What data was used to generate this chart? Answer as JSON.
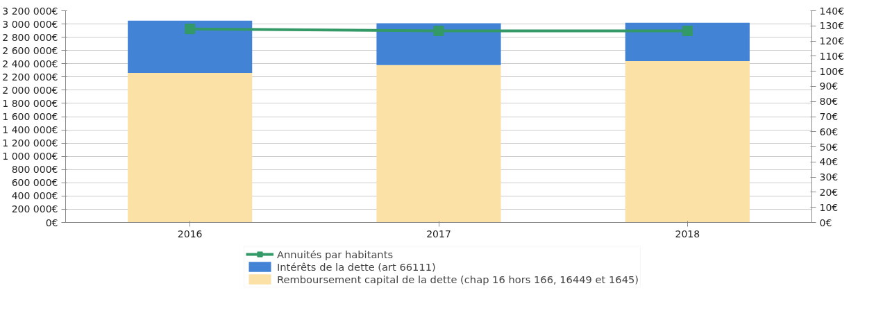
{
  "chart_data": {
    "type": "bar",
    "stacked": true,
    "categories": [
      "2016",
      "2017",
      "2018"
    ],
    "series": [
      {
        "name": "Remboursement capital de la dette (chap 16 hors 166, 16449 et 1645)",
        "color": "#fce1a6",
        "values": [
          2260000,
          2380000,
          2440000
        ]
      },
      {
        "name": "Intérêts de la dette (art 66111)",
        "color": "#4383d6",
        "values": [
          790000,
          630000,
          580000
        ]
      },
      {
        "name": "Annuités par habitants",
        "type": "line",
        "axis": "y2",
        "color": "#339966",
        "marker": "square",
        "values": [
          128,
          126.7,
          126.7
        ]
      }
    ],
    "ylim": [
      0,
      3200000
    ],
    "yticks": [
      {
        "value": 0,
        "label": "0€"
      },
      {
        "value": 200000,
        "label": "200 000€"
      },
      {
        "value": 400000,
        "label": "400 000€"
      },
      {
        "value": 600000,
        "label": "600 000€"
      },
      {
        "value": 800000,
        "label": "800 000€"
      },
      {
        "value": 1000000,
        "label": "1 000 000€"
      },
      {
        "value": 1200000,
        "label": "1 200 000€"
      },
      {
        "value": 1400000,
        "label": "1 400 000€"
      },
      {
        "value": 1600000,
        "label": "1 600 000€"
      },
      {
        "value": 1800000,
        "label": "1 800 000€"
      },
      {
        "value": 2000000,
        "label": "2 000 000€"
      },
      {
        "value": 2200000,
        "label": "2 200 000€"
      },
      {
        "value": 2400000,
        "label": "2 400 000€"
      },
      {
        "value": 2600000,
        "label": "2 600 000€"
      },
      {
        "value": 2800000,
        "label": "2 800 000€"
      },
      {
        "value": 3000000,
        "label": "3 000 000€"
      },
      {
        "value": 3200000,
        "label": "3 200 000€"
      }
    ],
    "y2lim": [
      0,
      140
    ],
    "y2ticks": [
      {
        "value": 0,
        "label": "0€"
      },
      {
        "value": 10,
        "label": "10€"
      },
      {
        "value": 20,
        "label": "20€"
      },
      {
        "value": 30,
        "label": "30€"
      },
      {
        "value": 40,
        "label": "40€"
      },
      {
        "value": 50,
        "label": "50€"
      },
      {
        "value": 60,
        "label": "60€"
      },
      {
        "value": 70,
        "label": "70€"
      },
      {
        "value": 80,
        "label": "80€"
      },
      {
        "value": 90,
        "label": "90€"
      },
      {
        "value": 100,
        "label": "100€"
      },
      {
        "value": 110,
        "label": "110€"
      },
      {
        "value": 120,
        "label": "120€"
      },
      {
        "value": 130,
        "label": "130€"
      },
      {
        "value": 140,
        "label": "140€"
      }
    ],
    "grid": "y",
    "legend": "bottom"
  }
}
